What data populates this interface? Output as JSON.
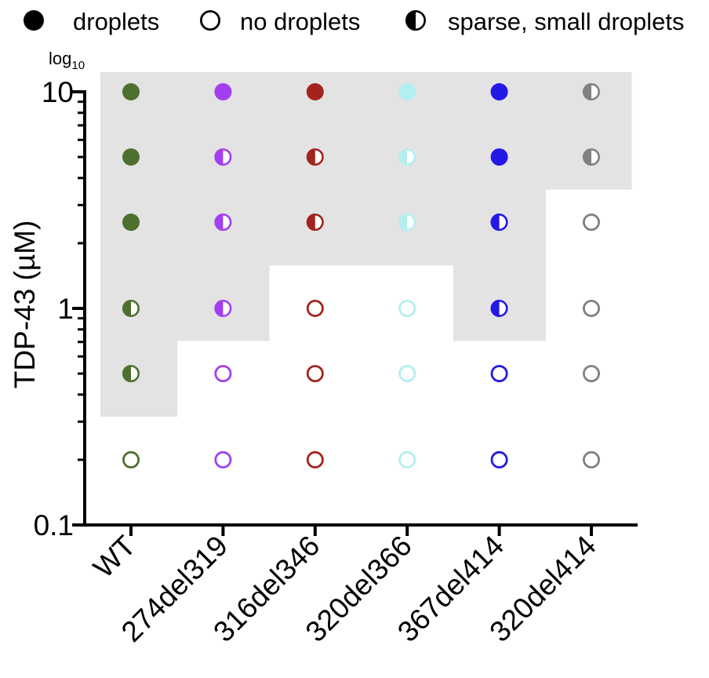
{
  "legend": {
    "items": [
      {
        "label": "droplets",
        "marker": "filled"
      },
      {
        "label": "no droplets",
        "marker": "open"
      },
      {
        "label": "sparse, small droplets",
        "marker": "half"
      }
    ]
  },
  "chart_data": {
    "type": "scatter",
    "scale_label": "log",
    "scale_subscript": "10",
    "ylabel": "TDP-43 (µM)",
    "xlabel": "",
    "y_scale": "log10",
    "ylim": [
      0.1,
      10
    ],
    "y_tick_labels": [
      "0.1",
      "1",
      "10"
    ],
    "categories": [
      "WT",
      "274del319",
      "316del346",
      "320del366",
      "367del414",
      "320del414"
    ],
    "concentrations": [
      0.2,
      0.5,
      1,
      2.5,
      5,
      10
    ],
    "colors": [
      "#4e6f2e",
      "#a23ff1",
      "#a3241f",
      "#b5eef0",
      "#2418e6",
      "#808080"
    ],
    "phase_region_color": "#e3e3e3",
    "legend_placement": "top",
    "series": [
      {
        "category": "WT",
        "states": [
          "open",
          "half",
          "half",
          "filled",
          "filled",
          "filled"
        ]
      },
      {
        "category": "274del319",
        "states": [
          "open",
          "open",
          "half",
          "half",
          "half",
          "filled"
        ]
      },
      {
        "category": "316del346",
        "states": [
          "open",
          "open",
          "open",
          "half",
          "half",
          "filled"
        ]
      },
      {
        "category": "320del366",
        "states": [
          "open",
          "open",
          "open",
          "half",
          "half",
          "filled"
        ]
      },
      {
        "category": "367del414",
        "states": [
          "open",
          "open",
          "half",
          "half",
          "filled",
          "filled"
        ]
      },
      {
        "category": "320del414",
        "states": [
          "open",
          "open",
          "open",
          "open",
          "half",
          "half"
        ]
      }
    ]
  }
}
